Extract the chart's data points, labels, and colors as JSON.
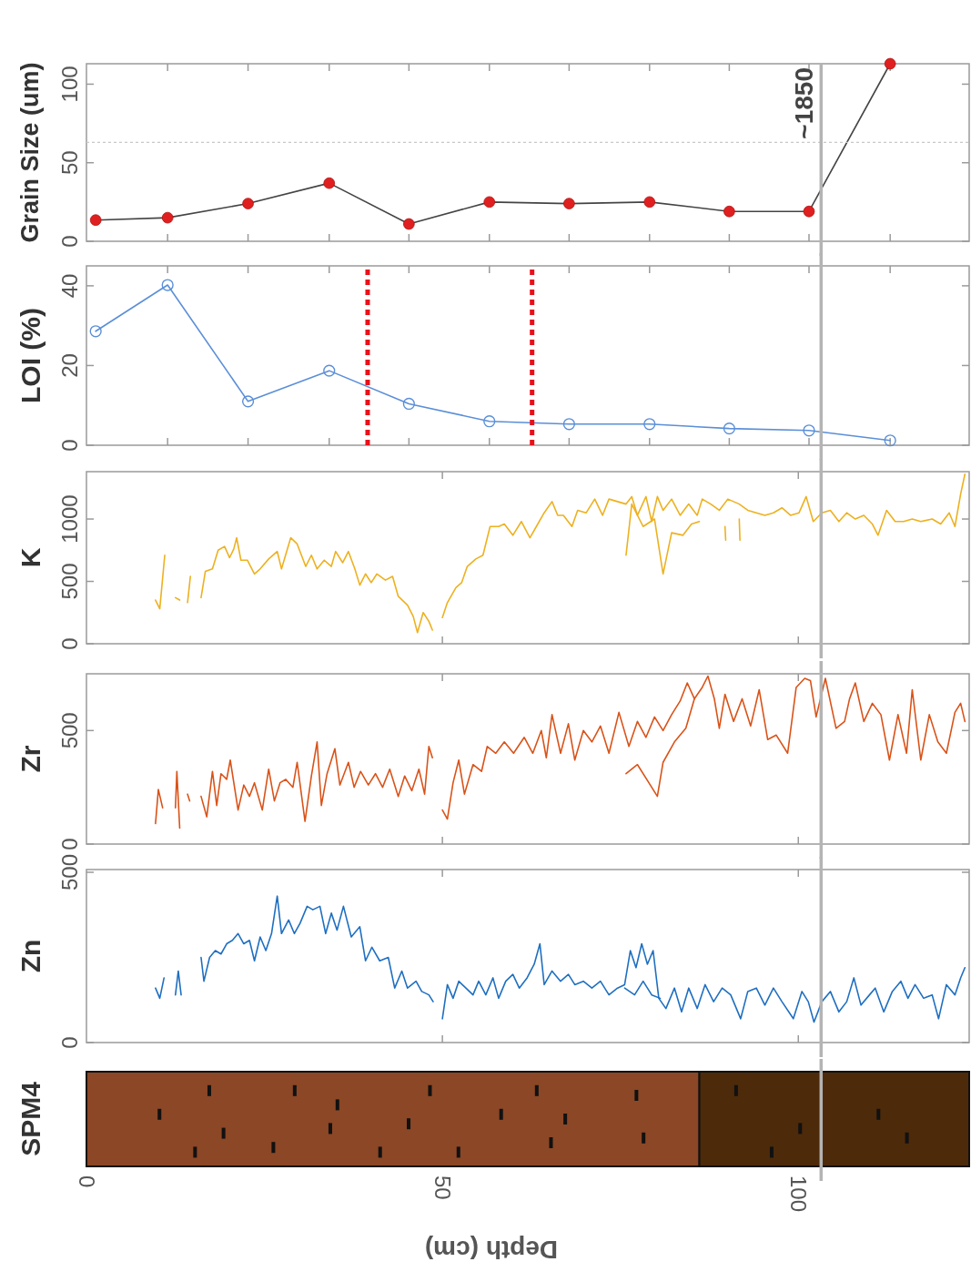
{
  "chart_data": [
    {
      "type": "line",
      "ylabel": "Grain Size (um)",
      "xlim": [
        0,
        124
      ],
      "ylim": [
        0,
        113
      ],
      "yticks": [
        0,
        50,
        100
      ],
      "xticks": [
        {
          "value": 11.4,
          "label": null
        },
        {
          "value": 22.7,
          "label": null
        },
        {
          "value": 34.1,
          "label": null
        },
        {
          "value": 45.3,
          "label": null
        },
        {
          "value": 56.6,
          "label": null
        },
        {
          "value": 67.8,
          "label": null
        },
        {
          "value": 79.1,
          "label": null
        },
        {
          "value": 90.3,
          "label": null
        },
        {
          "value": 101.5,
          "label": null
        },
        {
          "value": 112.9,
          "label": null
        }
      ],
      "tick_labels": "y",
      "marker": "circle",
      "line_style": "solid",
      "x": [
        1.3,
        11.4,
        22.7,
        34.1,
        45.3,
        56.6,
        67.8,
        79.1,
        90.3,
        101.5,
        112.9
      ],
      "series": [
        {
          "color": "#e02020",
          "values": [
            13.5,
            15,
            24,
            37,
            11,
            25,
            24,
            25,
            19,
            19,
            113
          ]
        }
      ],
      "ref_lines": [
        {
          "axis": "y",
          "value": 63,
          "color": "#c8c8c8",
          "line_style": "dotted"
        },
        {
          "axis": "x",
          "value": 103.2,
          "color": "#b4b4b4"
        }
      ],
      "annotations": [
        "~1850"
      ]
    },
    {
      "type": "line",
      "ylabel": "LOI (%)",
      "xlim": [
        0,
        124
      ],
      "ylim": [
        0,
        45
      ],
      "yticks": [
        0,
        20,
        40
      ],
      "xticks": [
        {
          "value": 11.4,
          "label": null
        },
        {
          "value": 22.7,
          "label": null
        },
        {
          "value": 34.1,
          "label": null
        },
        {
          "value": 45.3,
          "label": null
        },
        {
          "value": 56.6,
          "label": null
        },
        {
          "value": 67.8,
          "label": null
        },
        {
          "value": 79.1,
          "label": null
        },
        {
          "value": 90.3,
          "label": null
        },
        {
          "value": 101.5,
          "label": null
        },
        {
          "value": 112.9,
          "label": null
        }
      ],
      "tick_labels": "y",
      "marker": "circle",
      "line_style": "solid",
      "x": [
        1.3,
        11.4,
        22.7,
        34.1,
        45.3,
        56.6,
        67.8,
        79.1,
        90.3,
        101.5,
        112.9
      ],
      "series": [
        {
          "color": "#5b8fd8",
          "values": [
            28.6,
            40.2,
            11,
            18.7,
            10.4,
            6,
            5.3,
            5.3,
            4.2,
            3.7,
            1.2
          ]
        }
      ],
      "ref_lines": [
        {
          "axis": "x",
          "value": 39.5,
          "color": "#e8101a",
          "line_style": "dotted"
        },
        {
          "axis": "x",
          "value": 62.6,
          "color": "#e8101a",
          "line_style": "dotted"
        },
        {
          "axis": "x",
          "value": 103.2,
          "color": "#b4b4b4"
        }
      ]
    },
    {
      "type": "line",
      "ylabel": "K",
      "xlim": [
        0,
        124
      ],
      "ylim": [
        0,
        1380
      ],
      "yticks": [
        0,
        500,
        1000
      ],
      "xticks": [
        {
          "value": 50,
          "label": null
        },
        {
          "value": 100,
          "label": null
        }
      ],
      "tick_labels": "y",
      "line_style": "solid",
      "series": [
        {
          "color": "#edb120",
          "x": [
            9.7,
            10.3,
            11.0,
            11.5,
            12.5,
            13.1,
            13.6,
            14.2,
            14.6,
            15.3,
            16.1,
            16.7,
            17.7,
            18.5,
            19.4,
            20.1,
            20.7,
            21.1,
            21.7,
            22.6,
            23.6,
            24.4,
            25.6,
            26.8,
            27.4,
            28.7,
            29.6,
            30.8,
            31.6,
            32.4,
            33.4,
            34.4,
            35.0,
            36.0,
            36.8,
            37.7,
            38.4,
            39.2,
            40.0,
            40.8,
            42.0,
            43.0,
            43.8,
            45.1,
            45.9,
            46.5,
            47.3,
            48.1,
            48.6,
            49.3,
            50.0,
            50.7,
            51.9,
            52.7,
            53.5,
            54.7,
            55.7,
            56.7,
            57.9,
            58.7,
            59.9,
            61.1,
            62.3,
            63.2,
            64.3,
            65.4,
            66.2,
            67.0,
            68.2,
            69.0,
            70.2,
            71.4,
            72.5,
            73.4,
            74.6,
            75.8,
            76.6,
            77.4,
            78.6,
            79.4,
            80.2,
            81.0,
            82.2,
            83.4,
            84.6,
            85.8,
            86.5,
            87.7,
            88.9,
            90.1,
            91.7,
            92.9,
            94.1,
            95.3,
            96.5,
            97.7,
            98.9,
            100.1,
            101.1,
            102.1,
            103.3,
            104.5,
            105.7,
            106.8,
            108.0,
            109.2,
            110.4,
            111.2,
            112.4,
            113.6,
            114.8,
            116.0,
            117.2,
            118.8,
            120.0,
            121.2,
            122.0,
            122.8,
            123.4
          ],
          "values": [
            350,
            280,
            710,
            null,
            370,
            350,
            null,
            330,
            540,
            null,
            370,
            580,
            600,
            750,
            780,
            690,
            760,
            850,
            670,
            670,
            560,
            600,
            680,
            740,
            600,
            850,
            800,
            620,
            710,
            600,
            670,
            620,
            740,
            650,
            740,
            600,
            470,
            560,
            490,
            560,
            510,
            540,
            380,
            310,
            220,
            90,
            250,
            180,
            110,
            null,
            210,
            330,
            450,
            490,
            620,
            680,
            710,
            940,
            940,
            960,
            870,
            980,
            850,
            940,
            1050,
            1140,
            1030,
            1030,
            940,
            1070,
            1050,
            1160,
            1030,
            1160,
            1140,
            1120,
            1180,
            1030,
            1180,
            980,
            1180,
            1070,
            1160,
            1030,
            1120,
            1030,
            1160,
            1120,
            1070,
            1160,
            1120,
            1070,
            1050,
            1030,
            1050,
            1090,
            1030,
            1050,
            1180,
            980,
            1050,
            1070,
            980,
            1050,
            1000,
            1030,
            960,
            870,
            1070,
            980,
            980,
            1000,
            980,
            1000,
            960,
            1050,
            940,
            1200,
            1360
          ]
        },
        {
          "color": "#edb120",
          "x": [
            75.8,
            76.6,
            78.2,
            79.8,
            81.0,
            82.2,
            83.8,
            85.0,
            86.1,
            87.0,
            89.7,
            89.8,
            90.5,
            91.7,
            91.8
          ],
          "values": [
            710,
            1120,
            940,
            1000,
            560,
            890,
            870,
            960,
            980,
            null,
            940,
            830,
            null,
            1000,
            830
          ]
        }
      ],
      "ref_lines": [
        {
          "axis": "x",
          "value": 103.2,
          "color": "#b4b4b4"
        }
      ]
    },
    {
      "type": "line",
      "ylabel": "Zr",
      "xlim": [
        0,
        124
      ],
      "ylim": [
        0,
        750
      ],
      "yticks": [
        0,
        500
      ],
      "xticks": [
        {
          "value": 50,
          "label": null
        },
        {
          "value": 100,
          "label": null
        }
      ],
      "tick_labels": "y",
      "line_style": "solid",
      "series": [
        {
          "color": "#d95319",
          "x": [
            9.7,
            10.1,
            10.7,
            11.6,
            12.5,
            12.7,
            13.1,
            13.6,
            14.2,
            14.5,
            15.3,
            16.1,
            16.9,
            17.7,
            18.3,
            18.9,
            19.7,
            20.2,
            21.3,
            22.1,
            22.9,
            23.6,
            24.7,
            25.6,
            26.4,
            27.2,
            28.0,
            29.0,
            29.6,
            30.7,
            31.6,
            32.4,
            33.0,
            33.8,
            34.9,
            35.6,
            36.8,
            37.6,
            38.5,
            39.6,
            40.6,
            41.6,
            42.6,
            43.8,
            44.7,
            45.7,
            46.7,
            47.5,
            48.1,
            48.6,
            49.3,
            50.0,
            50.7,
            51.5,
            52.3,
            53.1,
            54.3,
            55.5,
            56.3,
            57.5,
            58.7,
            60.0,
            61.5,
            62.7,
            63.9,
            64.6,
            65.4,
            66.6,
            67.7,
            68.6,
            69.8,
            71.0,
            72.2,
            73.4,
            74.8,
            76.2,
            77.4,
            78.6,
            79.8,
            81.0,
            82.2,
            83.4,
            84.4,
            85.4,
            86.5,
            87.3,
            88.2,
            88.9,
            89.7,
            90.9,
            92.1,
            93.3,
            94.5,
            95.7,
            96.9,
            98.5,
            99.7,
            100.9,
            101.7,
            102.5,
            103.8,
            105.3,
            106.5,
            107.2,
            108.0,
            109.2,
            110.4,
            111.6,
            112.8,
            114.0,
            115.2,
            116.0,
            117.2,
            118.4,
            119.6,
            120.8,
            122.0,
            122.8,
            123.4
          ],
          "values": [
            90,
            240,
            160,
            null,
            160,
            320,
            70,
            null,
            220,
            190,
            null,
            210,
            120,
            320,
            170,
            310,
            285,
            370,
            150,
            260,
            210,
            270,
            150,
            330,
            190,
            270,
            285,
            250,
            360,
            100,
            300,
            450,
            170,
            310,
            420,
            260,
            360,
            250,
            320,
            260,
            310,
            250,
            330,
            210,
            300,
            235,
            330,
            220,
            430,
            380,
            null,
            150,
            110,
            270,
            370,
            220,
            350,
            320,
            430,
            400,
            450,
            400,
            470,
            400,
            500,
            380,
            570,
            400,
            530,
            370,
            500,
            450,
            520,
            400,
            580,
            430,
            540,
            470,
            560,
            500,
            570,
            630,
            710,
            640,
            690,
            740,
            640,
            510,
            660,
            540,
            640,
            520,
            680,
            460,
            480,
            400,
            690,
            730,
            720,
            560,
            730,
            510,
            540,
            640,
            710,
            540,
            620,
            570,
            370,
            570,
            400,
            680,
            370,
            570,
            450,
            400,
            580,
            620,
            540
          ]
        },
        {
          "color": "#d95319",
          "x": [
            75.8,
            77.4,
            79.0,
            80.2,
            81.0,
            82.6,
            84.2,
            85.4
          ],
          "values": [
            310,
            350,
            270,
            210,
            360,
            450,
            510,
            640
          ]
        }
      ],
      "ref_lines": [
        {
          "axis": "x",
          "value": 103.2,
          "color": "#b4b4b4"
        }
      ]
    },
    {
      "type": "line",
      "ylabel": "Zn",
      "xlim": [
        0,
        124
      ],
      "ylim": [
        0,
        508
      ],
      "yticks": [
        0,
        500
      ],
      "xticks": [
        {
          "value": 50,
          "label": null
        },
        {
          "value": 100,
          "label": null
        }
      ],
      "tick_labels": "y",
      "line_style": "solid",
      "series": [
        {
          "color": "#1f6fc0",
          "x": [
            9.7,
            10.3,
            10.9,
            11.7,
            12.5,
            12.9,
            13.3,
            14.7,
            16.1,
            16.5,
            17.3,
            18.1,
            18.9,
            19.7,
            20.5,
            21.3,
            22.1,
            22.9,
            23.6,
            24.4,
            25.2,
            26.0,
            26.8,
            27.4,
            28.4,
            29.2,
            30.0,
            31.0,
            31.8,
            32.8,
            33.6,
            34.4,
            35.2,
            36.1,
            37.2,
            38.4,
            39.2,
            40.1,
            41.2,
            42.4,
            43.3,
            44.3,
            45.1,
            46.3,
            47.1,
            48.1,
            48.7,
            49.3,
            50.0,
            50.7,
            51.5,
            52.3,
            53.3,
            54.3,
            55.1,
            56.1,
            57.1,
            57.9,
            58.9,
            59.9,
            60.8,
            61.9,
            62.9,
            63.7,
            64.3,
            65.4,
            66.6,
            67.7,
            68.6,
            69.8,
            71.0,
            72.2,
            73.4,
            74.6,
            75.6,
            76.4,
            77.2,
            78.0,
            78.8,
            79.6,
            80.4,
            81.4,
            82.6,
            83.6,
            84.6,
            85.8,
            86.9,
            88.1,
            89.3,
            90.5,
            91.9,
            92.9,
            94.1,
            95.3,
            96.5,
            97.7,
            99.3,
            100.5,
            101.4,
            102.2,
            103.3,
            104.5,
            105.7,
            106.8,
            107.8,
            108.8,
            110.0,
            110.8,
            112.0,
            113.2,
            114.4,
            115.4,
            116.4,
            117.6,
            118.8,
            119.7,
            120.8,
            122.0,
            122.8,
            123.4
          ],
          "values": [
            160,
            130,
            190,
            null,
            140,
            210,
            140,
            null,
            250,
            180,
            250,
            270,
            260,
            290,
            300,
            320,
            290,
            300,
            240,
            310,
            270,
            320,
            430,
            320,
            360,
            320,
            350,
            400,
            390,
            400,
            320,
            380,
            330,
            400,
            310,
            340,
            240,
            280,
            240,
            250,
            160,
            210,
            160,
            180,
            150,
            140,
            120,
            null,
            70,
            170,
            130,
            180,
            160,
            140,
            180,
            140,
            190,
            130,
            180,
            200,
            160,
            190,
            230,
            290,
            170,
            210,
            180,
            200,
            170,
            180,
            160,
            180,
            140,
            160,
            170,
            270,
            220,
            290,
            230,
            270,
            130,
            100,
            160,
            90,
            160,
            100,
            170,
            120,
            160,
            140,
            70,
            150,
            160,
            110,
            160,
            120,
            70,
            150,
            120,
            60,
            120,
            150,
            90,
            120,
            190,
            110,
            140,
            160,
            90,
            150,
            180,
            130,
            170,
            130,
            140,
            70,
            170,
            140,
            190,
            220
          ]
        },
        {
          "color": "#1f6fc0",
          "x": [
            75.6,
            77.0,
            78.2,
            79.4,
            80.6
          ],
          "values": [
            160,
            140,
            180,
            140,
            130
          ]
        }
      ],
      "ref_lines": [
        {
          "axis": "x",
          "value": 103.2,
          "color": "#b4b4b4"
        }
      ]
    },
    {
      "type": "bar",
      "orientation": "horizontal",
      "stacked": true,
      "categories": [
        "SPM4"
      ],
      "xlabel": "Depth (cm)",
      "xlim": [
        0,
        124
      ],
      "xticks": [
        0,
        50,
        100
      ],
      "series": [
        {
          "color": "#8b4726",
          "values": [
            86.1
          ]
        },
        {
          "color": "#4d2a0a",
          "values": [
            37.9
          ]
        }
      ],
      "ref_lines": [
        {
          "axis": "x",
          "value": 103.2,
          "color": "#b4b4b4"
        }
      ]
    }
  ]
}
